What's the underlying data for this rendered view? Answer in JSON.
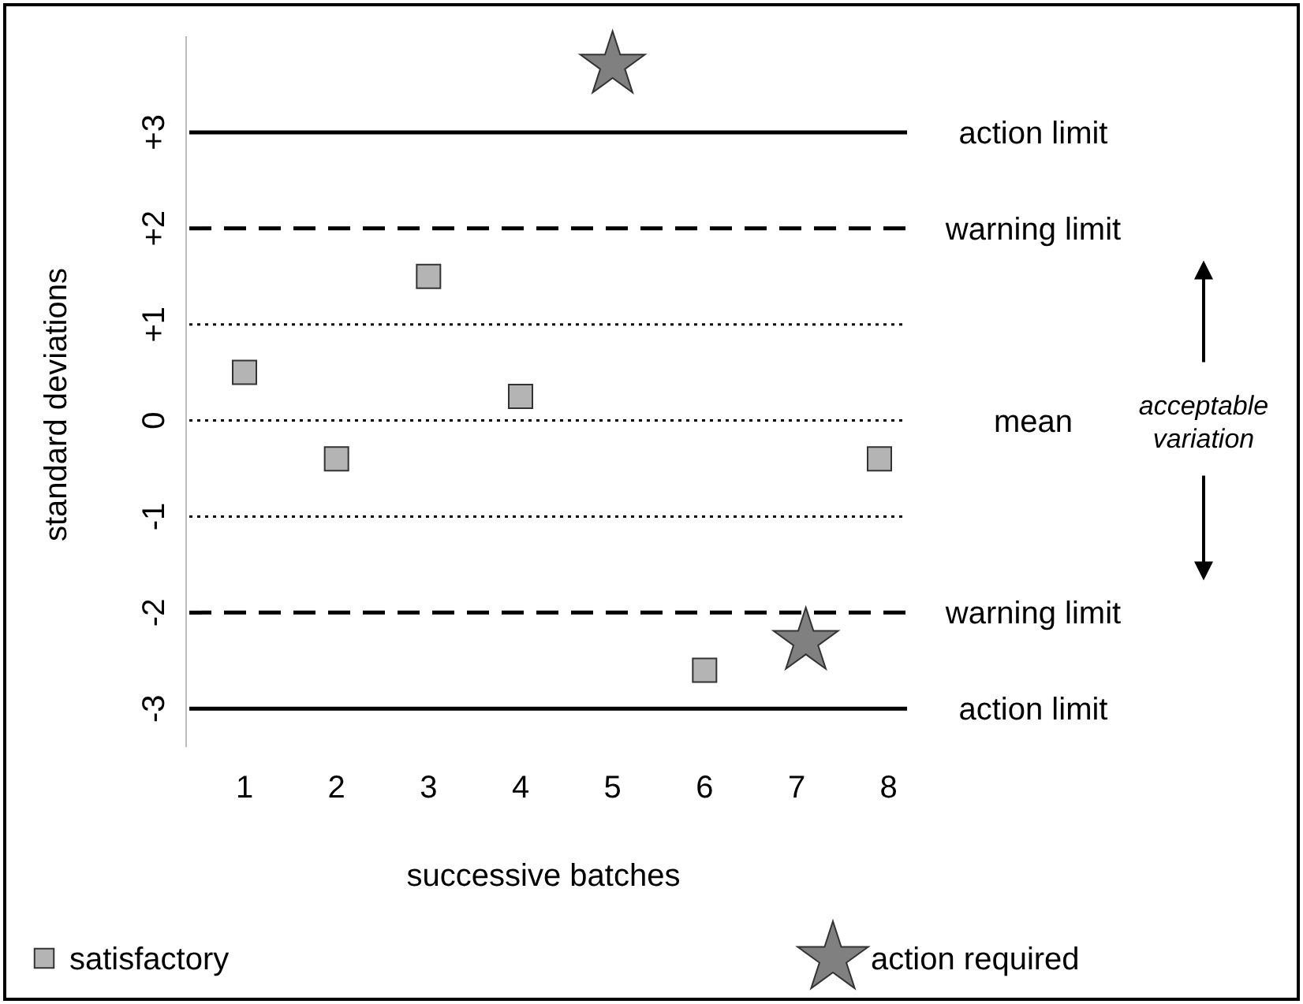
{
  "chart_data": {
    "type": "scatter",
    "xlabel": "successive batches",
    "xlim": [
      0.4,
      8.2
    ],
    "ylim": [
      -3.4,
      4
    ],
    "ylabel": "standard deviations",
    "xticks": [
      1,
      2,
      3,
      4,
      5,
      6,
      7,
      8
    ],
    "yticks": [
      {
        "value": 3,
        "label": "+3"
      },
      {
        "value": 2,
        "label": "+2"
      },
      {
        "value": 1,
        "label": "+1"
      },
      {
        "value": 0,
        "label": "0"
      },
      {
        "value": -1,
        "label": "-1"
      },
      {
        "value": -2,
        "label": "-2"
      },
      {
        "value": -3,
        "label": "-3"
      }
    ],
    "grid": false,
    "legend": "bottom",
    "series": [
      {
        "name": "satisfactory",
        "color": "#b4b4b4",
        "marker": "square",
        "x": [
          1,
          2,
          3,
          4,
          6,
          7.9
        ],
        "values": [
          0.5,
          -0.4,
          1.5,
          0.25,
          -2.6,
          -0.4
        ]
      },
      {
        "name": "action required",
        "color": "#808080",
        "marker": "star",
        "x": [
          5,
          7.1
        ],
        "values": [
          3.7,
          -2.3
        ]
      }
    ],
    "ref_lines": [
      {
        "axis": "y",
        "value": 3,
        "label": "action limit",
        "line_style": "solid",
        "color": "#000000"
      },
      {
        "axis": "y",
        "value": 2,
        "label": "warning limit",
        "line_style": "dashed",
        "color": "#000000"
      },
      {
        "axis": "y",
        "value": 1,
        "label": null,
        "line_style": "dotted",
        "color": "#000000"
      },
      {
        "axis": "y",
        "value": 0,
        "label": "mean",
        "line_style": "dotted",
        "color": "#000000"
      },
      {
        "axis": "y",
        "value": -1,
        "label": null,
        "line_style": "dotted",
        "color": "#000000"
      },
      {
        "axis": "y",
        "value": -2,
        "label": "warning limit",
        "line_style": "dashed",
        "color": "#000000"
      },
      {
        "axis": "y",
        "value": -3,
        "label": "action limit",
        "line_style": "solid",
        "color": "#000000"
      }
    ],
    "annotations": [
      "acceptable variation"
    ]
  }
}
